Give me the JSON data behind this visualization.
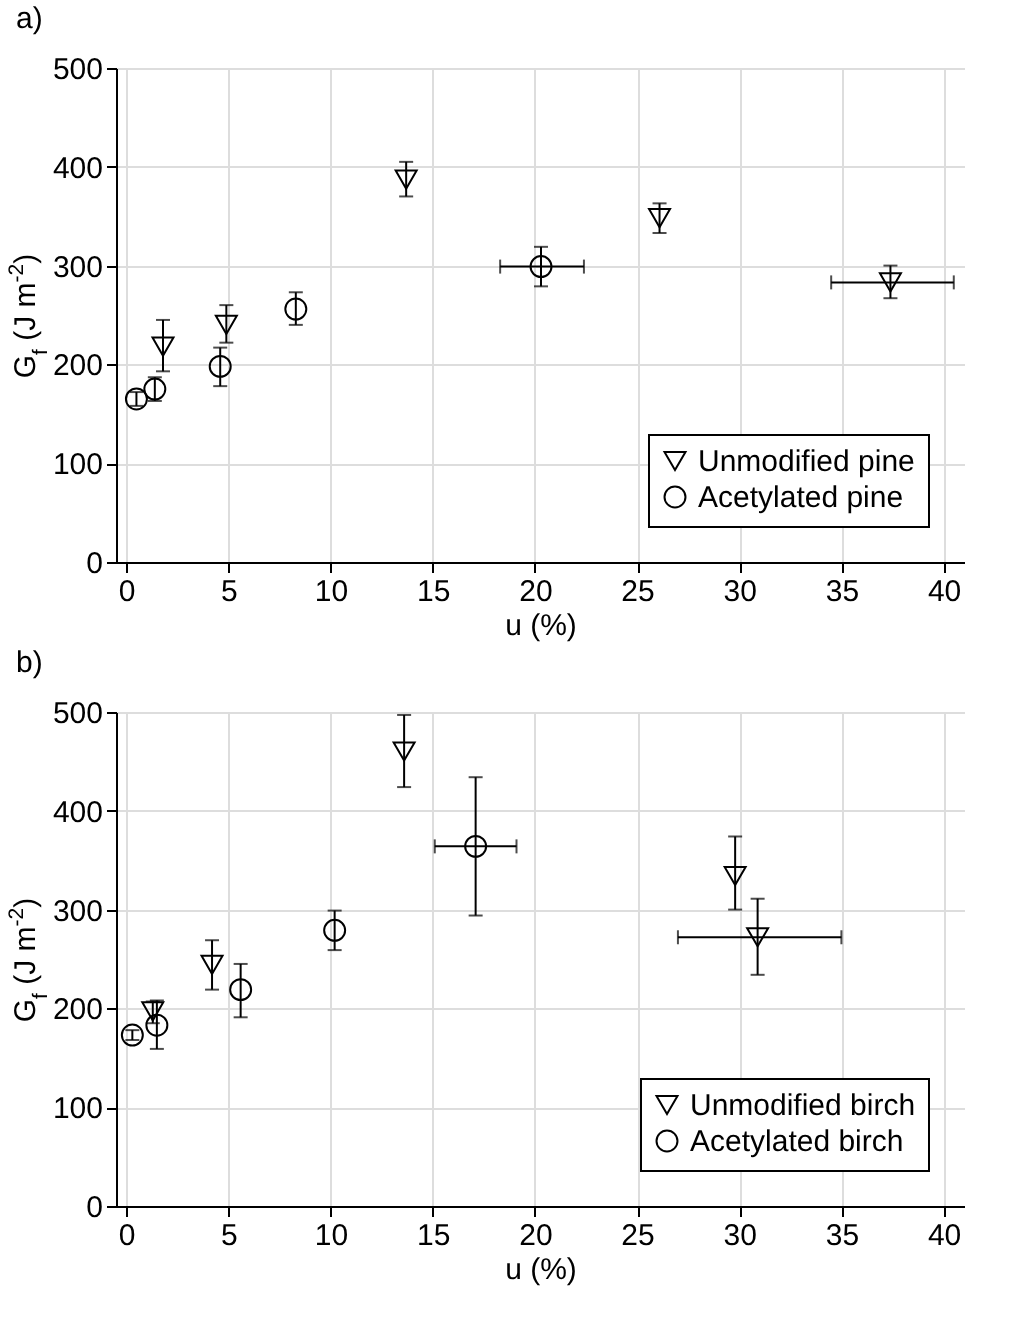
{
  "chart_data": [
    {
      "type": "scatter",
      "title": "a)",
      "xlabel": "u (%)",
      "ylabel": "G$_{f}$ (J m$^{-2}$)",
      "xlim": [
        -0.5,
        41
      ],
      "xticks": [
        0,
        5,
        10,
        15,
        20,
        25,
        30,
        35,
        40
      ],
      "ylim": [
        0,
        500
      ],
      "yticks": [
        0,
        100,
        200,
        300,
        400,
        500
      ],
      "grid": true,
      "legend": "bottom right",
      "series": [
        {
          "name": "Unmodified pine",
          "color": "#000000",
          "marker": "triangle",
          "x": [
            1.8,
            4.9,
            13.7,
            26.1,
            37.4
          ],
          "values": [
            218,
            240,
            387,
            348,
            283
          ],
          "errors": [
            [
              193,
              245
            ],
            [
              222,
              260
            ],
            [
              370,
              405
            ],
            [
              333,
              363
            ],
            [
              267,
              300
            ]
          ],
          "xerrors": [
            null,
            null,
            null,
            null,
            [
              34.5,
              40.5
            ]
          ]
        },
        {
          "name": "Acetylated pine",
          "color": "#000000",
          "marker": "circle",
          "x": [
            0.5,
            1.4,
            4.6,
            8.3,
            20.3
          ],
          "values": [
            165,
            175,
            198,
            256,
            299
          ],
          "errors": [
            7,
            [
              163,
              187
            ],
            [
              178,
              217
            ],
            [
              240,
              273
            ],
            [
              279,
              319
            ]
          ],
          "xerrors": [
            null,
            null,
            null,
            null,
            [
              18.3,
              22.4
            ]
          ]
        }
      ]
    },
    {
      "type": "scatter",
      "title": "b)",
      "xlabel": "u (%)",
      "ylabel": "G$_{f}$ (J m$^{-2}$)",
      "xlim": [
        -0.5,
        41
      ],
      "xticks": [
        0,
        5,
        10,
        15,
        20,
        25,
        30,
        35,
        40
      ],
      "ylim": [
        0,
        500
      ],
      "yticks": [
        0,
        100,
        200,
        300,
        400,
        500
      ],
      "grid": true,
      "legend": "bottom right",
      "series": [
        {
          "name": "Unmodified birch",
          "color": "#000000",
          "marker": "triangle",
          "x": [
            1.3,
            4.2,
            13.6,
            29.8,
            30.9
          ],
          "values": [
            197,
            244,
            460,
            334,
            272
          ],
          "errors": [
            [
              185,
              207
            ],
            [
              219,
              269
            ],
            [
              424,
              497
            ],
            [
              300,
              374
            ],
            [
              234,
              311
            ]
          ],
          "xerrors": [
            null,
            null,
            null,
            null,
            [
              27,
              35
            ]
          ]
        },
        {
          "name": "Acetylated birch",
          "color": "#000000",
          "marker": "circle",
          "x": [
            0.3,
            1.5,
            5.6,
            10.2,
            17.1
          ],
          "values": [
            173,
            183,
            219,
            279,
            364
          ],
          "errors": [
            5,
            [
              159,
              208
            ],
            [
              191,
              245
            ],
            [
              259,
              299
            ],
            [
              294,
              434
            ]
          ],
          "xerrors": [
            null,
            null,
            null,
            null,
            [
              15.1,
              19.1
            ]
          ]
        }
      ]
    }
  ]
}
